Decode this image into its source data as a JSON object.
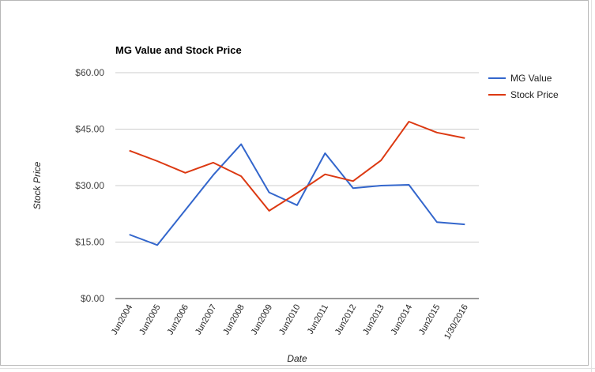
{
  "chart_data": {
    "type": "line",
    "title": "MG Value and Stock Price",
    "xlabel": "Date",
    "ylabel": "Stock Price",
    "categories": [
      "Jun2004",
      "Jun2005",
      "Jun2006",
      "Jun2007",
      "Jun2008",
      "Jun2009",
      "Jun2010",
      "Jun2011",
      "Jun2012",
      "Jun2013",
      "Jun2014",
      "Jun2015",
      "1/30/2016"
    ],
    "y_ticks": [
      "$0.00",
      "$15.00",
      "$30.00",
      "$45.00",
      "$60.00"
    ],
    "ylim": [
      0,
      60
    ],
    "grid": true,
    "legend_position": "right",
    "series": [
      {
        "name": "MG Value",
        "color": "#3366cc",
        "values": [
          17.0,
          14.2,
          23.5,
          32.8,
          41.0,
          28.2,
          24.8,
          38.6,
          29.3,
          30.0,
          30.2,
          20.3,
          19.7
        ]
      },
      {
        "name": "Stock Price",
        "color": "#dc3912",
        "values": [
          39.3,
          36.5,
          33.4,
          36.1,
          32.5,
          23.3,
          28.0,
          33.0,
          31.2,
          36.7,
          47.0,
          44.1,
          42.6
        ]
      }
    ]
  }
}
